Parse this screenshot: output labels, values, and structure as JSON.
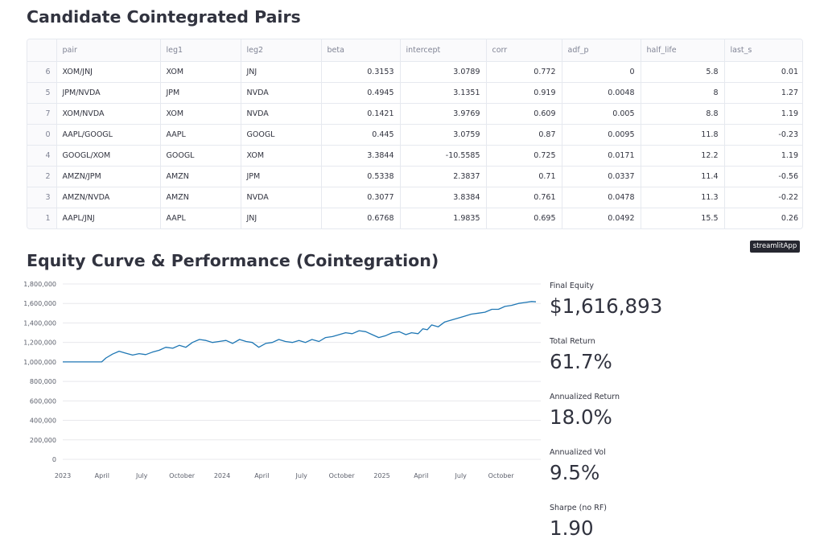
{
  "pairs_section": {
    "title": "Candidate Cointegrated Pairs",
    "columns": [
      "",
      "pair",
      "leg1",
      "leg2",
      "beta",
      "intercept",
      "corr",
      "adf_p",
      "half_life",
      "last_s"
    ],
    "rows": [
      [
        "6",
        "XOM/JNJ",
        "XOM",
        "JNJ",
        "0.3153",
        "3.0789",
        "0.772",
        "0",
        "5.8",
        "0.01"
      ],
      [
        "5",
        "JPM/NVDA",
        "JPM",
        "NVDA",
        "0.4945",
        "3.1351",
        "0.919",
        "0.0048",
        "8",
        "1.27"
      ],
      [
        "7",
        "XOM/NVDA",
        "XOM",
        "NVDA",
        "0.1421",
        "3.9769",
        "0.609",
        "0.005",
        "8.8",
        "1.19"
      ],
      [
        "0",
        "AAPL/GOOGL",
        "AAPL",
        "GOOGL",
        "0.445",
        "3.0759",
        "0.87",
        "0.0095",
        "11.8",
        "-0.23"
      ],
      [
        "4",
        "GOOGL/XOM",
        "GOOGL",
        "XOM",
        "3.3844",
        "-10.5585",
        "0.725",
        "0.0171",
        "12.2",
        "1.19"
      ],
      [
        "2",
        "AMZN/JPM",
        "AMZN",
        "JPM",
        "0.5338",
        "2.3837",
        "0.71",
        "0.0337",
        "11.4",
        "-0.56"
      ],
      [
        "3",
        "AMZN/NVDA",
        "AMZN",
        "NVDA",
        "0.3077",
        "3.8384",
        "0.761",
        "0.0478",
        "11.3",
        "-0.22"
      ],
      [
        "1",
        "AAPL/JNJ",
        "AAPL",
        "JNJ",
        "0.6768",
        "1.9835",
        "0.695",
        "0.0492",
        "15.5",
        "0.26"
      ]
    ]
  },
  "badge": {
    "label": "streamlitApp"
  },
  "equity_section": {
    "title": "Equity Curve & Performance (Cointegration)"
  },
  "metrics": [
    {
      "label": "Final Equity",
      "value": "$1,616,893"
    },
    {
      "label": "Total Return",
      "value": "61.7%"
    },
    {
      "label": "Annualized Return",
      "value": "18.0%"
    },
    {
      "label": "Annualized Vol",
      "value": "9.5%"
    },
    {
      "label": "Sharpe (no RF)",
      "value": "1.90"
    }
  ],
  "colors": {
    "line": "#1f77b4",
    "grid": "#e8e8ec",
    "text": "#31333f"
  },
  "chart_data": {
    "type": "line",
    "ylim": [
      0,
      1800000
    ],
    "yticks": [
      0,
      200000,
      400000,
      600000,
      800000,
      1000000,
      1200000,
      1400000,
      1600000,
      1800000
    ],
    "ytick_labels": [
      "0",
      "200,000",
      "400,000",
      "600,000",
      "800,000",
      "1,000,000",
      "1,200,000",
      "1,400,000",
      "1,600,000",
      "1,800,000"
    ],
    "xlim": [
      "2023-01-01",
      "2025-12-31"
    ],
    "xticks": [
      "2023-01-01",
      "2023-04-01",
      "2023-07-01",
      "2023-10-01",
      "2024-01-01",
      "2024-04-01",
      "2024-07-01",
      "2024-10-01",
      "2025-01-01",
      "2025-04-01",
      "2025-07-01",
      "2025-10-01"
    ],
    "xtick_labels": [
      "2023",
      "April",
      "July",
      "October",
      "2024",
      "April",
      "July",
      "October",
      "2025",
      "April",
      "July",
      "October"
    ],
    "grid": true,
    "series": [
      {
        "points": [
          [
            "2023-01-01",
            1000000
          ],
          [
            "2023-02-15",
            1000000
          ],
          [
            "2023-03-31",
            1000000
          ],
          [
            "2023-04-10",
            1040000
          ],
          [
            "2023-04-25",
            1080000
          ],
          [
            "2023-05-10",
            1110000
          ],
          [
            "2023-05-25",
            1090000
          ],
          [
            "2023-06-10",
            1070000
          ],
          [
            "2023-06-25",
            1085000
          ],
          [
            "2023-07-10",
            1075000
          ],
          [
            "2023-07-25",
            1100000
          ],
          [
            "2023-08-10",
            1120000
          ],
          [
            "2023-08-25",
            1150000
          ],
          [
            "2023-09-10",
            1140000
          ],
          [
            "2023-09-25",
            1170000
          ],
          [
            "2023-10-10",
            1150000
          ],
          [
            "2023-10-25",
            1200000
          ],
          [
            "2023-11-10",
            1230000
          ],
          [
            "2023-11-25",
            1220000
          ],
          [
            "2023-12-10",
            1200000
          ],
          [
            "2023-12-25",
            1210000
          ],
          [
            "2024-01-10",
            1220000
          ],
          [
            "2024-01-25",
            1190000
          ],
          [
            "2024-02-10",
            1230000
          ],
          [
            "2024-02-25",
            1210000
          ],
          [
            "2024-03-10",
            1200000
          ],
          [
            "2024-03-25",
            1150000
          ],
          [
            "2024-04-10",
            1190000
          ],
          [
            "2024-04-25",
            1200000
          ],
          [
            "2024-05-10",
            1230000
          ],
          [
            "2024-05-25",
            1210000
          ],
          [
            "2024-06-10",
            1200000
          ],
          [
            "2024-06-25",
            1220000
          ],
          [
            "2024-07-10",
            1200000
          ],
          [
            "2024-07-25",
            1230000
          ],
          [
            "2024-08-10",
            1210000
          ],
          [
            "2024-08-25",
            1250000
          ],
          [
            "2024-09-10",
            1260000
          ],
          [
            "2024-09-25",
            1280000
          ],
          [
            "2024-10-10",
            1300000
          ],
          [
            "2024-10-25",
            1290000
          ],
          [
            "2024-11-10",
            1320000
          ],
          [
            "2024-11-25",
            1310000
          ],
          [
            "2024-12-10",
            1280000
          ],
          [
            "2024-12-25",
            1250000
          ],
          [
            "2025-01-10",
            1270000
          ],
          [
            "2025-01-25",
            1300000
          ],
          [
            "2025-02-10",
            1310000
          ],
          [
            "2025-02-25",
            1280000
          ],
          [
            "2025-03-10",
            1300000
          ],
          [
            "2025-03-25",
            1290000
          ],
          [
            "2025-04-05",
            1340000
          ],
          [
            "2025-04-15",
            1330000
          ],
          [
            "2025-04-25",
            1380000
          ],
          [
            "2025-05-10",
            1360000
          ],
          [
            "2025-05-25",
            1410000
          ],
          [
            "2025-06-10",
            1430000
          ],
          [
            "2025-06-25",
            1450000
          ],
          [
            "2025-07-10",
            1470000
          ],
          [
            "2025-07-25",
            1490000
          ],
          [
            "2025-08-10",
            1500000
          ],
          [
            "2025-08-25",
            1510000
          ],
          [
            "2025-09-10",
            1540000
          ],
          [
            "2025-09-25",
            1540000
          ],
          [
            "2025-10-10",
            1570000
          ],
          [
            "2025-10-25",
            1580000
          ],
          [
            "2025-11-10",
            1600000
          ],
          [
            "2025-11-25",
            1610000
          ],
          [
            "2025-12-10",
            1620000
          ],
          [
            "2025-12-20",
            1616893
          ]
        ]
      }
    ]
  }
}
